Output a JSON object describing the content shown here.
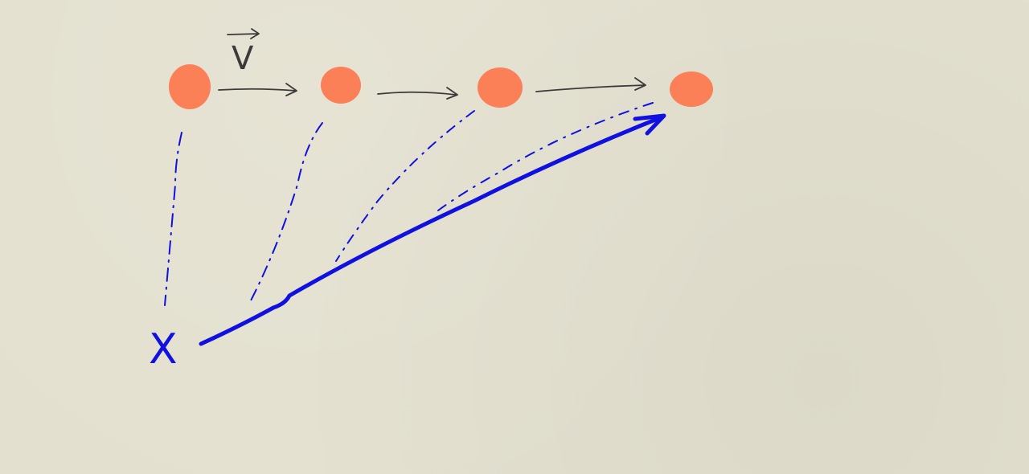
{
  "diagram": {
    "velocity_label": "V",
    "origin_label": "X",
    "colors": {
      "background": "#e3e0cf",
      "dot_fill": "#fb7f57",
      "ink_dark": "#3a3a3a",
      "ink_blue": "#1010e0"
    },
    "dot_count": 4
  }
}
